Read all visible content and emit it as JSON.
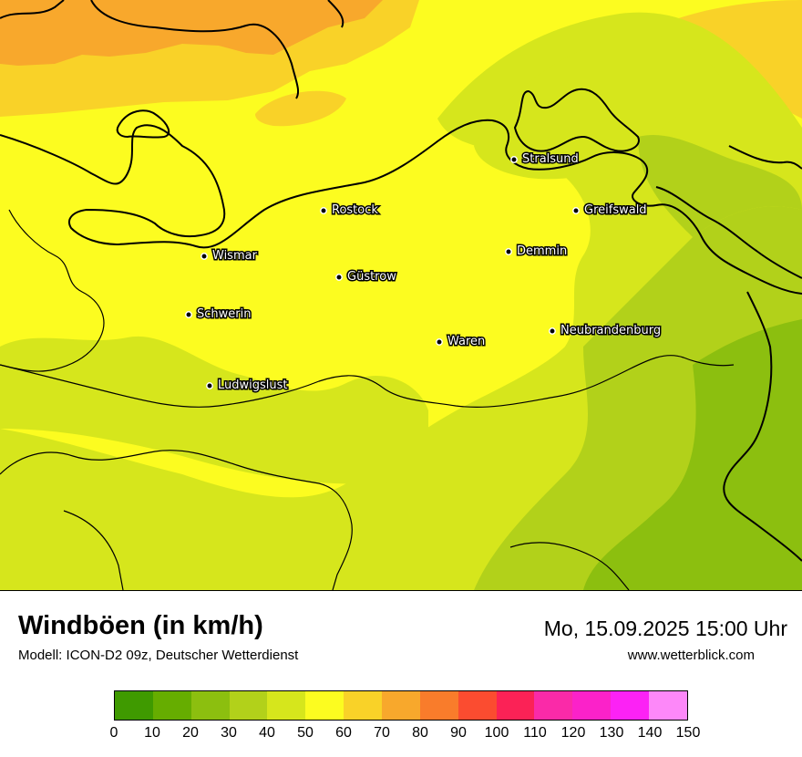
{
  "map": {
    "cities": [
      {
        "name": "Stralsund",
        "pos": [
          564,
          175
        ]
      },
      {
        "name": "Rostock",
        "pos": [
          355,
          231
        ]
      },
      {
        "name": "Greifswald",
        "pos": [
          632,
          231
        ]
      },
      {
        "name": "Wismar",
        "pos": [
          224,
          281
        ]
      },
      {
        "name": "Demmin",
        "pos": [
          558,
          276
        ]
      },
      {
        "name": "Güstrow",
        "pos": [
          372,
          304
        ]
      },
      {
        "name": "Schwerin",
        "pos": [
          207,
          345
        ]
      },
      {
        "name": "Neubrandenburg",
        "pos": [
          606,
          363
        ]
      },
      {
        "name": "Waren",
        "pos": [
          482,
          375
        ]
      },
      {
        "name": "Ludwigslust",
        "pos": [
          230,
          423
        ]
      }
    ]
  },
  "footer": {
    "title": "Windböen (in km/h)",
    "subtitle": "Modell: ICON-D2 09z, Deutscher Wetterdienst",
    "datetime": "Mo, 15.09.2025 15:00 Uhr",
    "website": "www.wetterblick.com"
  },
  "legend": {
    "colors": [
      "#3f9a00",
      "#66ad00",
      "#8cbf0f",
      "#b2d11a",
      "#d6e61c",
      "#fcfc20",
      "#f9d228",
      "#f8a82c",
      "#f97c2b",
      "#fb4c30",
      "#fb2256",
      "#fa2aa8",
      "#fb22c9",
      "#fc22f5",
      "#fd88f9"
    ],
    "ticks": [
      "0",
      "10",
      "20",
      "30",
      "40",
      "50",
      "60",
      "70",
      "80",
      "90",
      "100",
      "110",
      "120",
      "130",
      "140",
      "150"
    ]
  }
}
